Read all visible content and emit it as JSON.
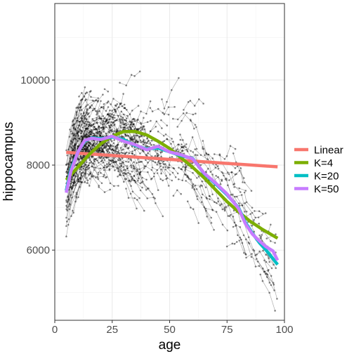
{
  "chart_data": {
    "type": "line",
    "xlabel": "age",
    "ylabel": "hippocampus",
    "xlim": [
      0,
      100
    ],
    "ylim": [
      4350,
      11800
    ],
    "x_ticks": [
      0,
      25,
      50,
      75,
      100
    ],
    "y_ticks": [
      6000,
      8000,
      10000
    ],
    "x_tick_labels": [
      "0",
      "25",
      "50",
      "75",
      "100"
    ],
    "y_tick_labels": [
      "6000",
      "8000",
      "10000"
    ],
    "grid": true,
    "legend_position": "right",
    "series": [
      {
        "name": "Linear",
        "color": "#f8766d",
        "x": [
          5,
          97
        ],
        "y": [
          8300,
          7960
        ]
      },
      {
        "name": "K=4",
        "color": "#7cae00",
        "x": [
          5,
          10,
          15,
          20,
          25,
          30,
          35,
          40,
          45,
          50,
          55,
          60,
          65,
          70,
          75,
          80,
          85,
          90,
          97
        ],
        "y": [
          7650,
          7950,
          8250,
          8500,
          8680,
          8790,
          8790,
          8710,
          8560,
          8390,
          8170,
          7950,
          7700,
          7420,
          7140,
          6900,
          6680,
          6500,
          6280
        ]
      },
      {
        "name": "K=20",
        "color": "#00bfc4",
        "x": [
          5,
          7,
          10,
          13,
          16,
          20,
          25,
          30,
          35,
          40,
          45,
          50,
          55,
          60,
          65,
          70,
          75,
          80,
          83,
          86,
          89,
          92,
          95,
          97
        ],
        "y": [
          7400,
          7900,
          8300,
          8560,
          8640,
          8620,
          8660,
          8600,
          8460,
          8380,
          8400,
          8310,
          8220,
          8160,
          7800,
          7560,
          7300,
          7000,
          6650,
          6400,
          6180,
          6000,
          5800,
          5660
        ]
      },
      {
        "name": "K=50",
        "color": "#c77cff",
        "x": [
          5,
          7,
          10,
          13,
          16,
          20,
          25,
          30,
          35,
          40,
          45,
          50,
          55,
          60,
          65,
          70,
          75,
          80,
          83,
          86,
          89,
          92,
          95,
          97
        ],
        "y": [
          7350,
          7850,
          8300,
          8580,
          8630,
          8600,
          8680,
          8560,
          8480,
          8360,
          8440,
          8310,
          8240,
          8150,
          7810,
          7580,
          7320,
          6980,
          6620,
          6380,
          6220,
          6080,
          5980,
          5760
        ]
      }
    ],
    "subjects_approx_count": 420
  }
}
